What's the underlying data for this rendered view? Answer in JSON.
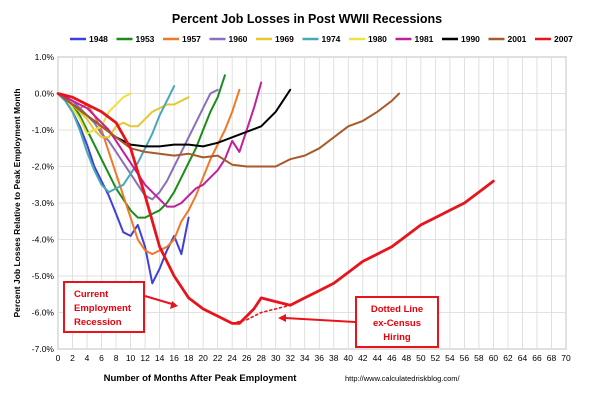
{
  "chart_data": {
    "type": "line",
    "title": "Percent Job Losses in Post WWII Recessions",
    "xlabel": "Number of Months After Peak Employment",
    "ylabel": "Percent Job Losses Relative to Peak Employment Month",
    "source": "http://www.calculatedriskblog.com/",
    "xlim": [
      0,
      70
    ],
    "ylim": [
      -7,
      1
    ],
    "x_ticks": [
      0,
      2,
      4,
      6,
      8,
      10,
      12,
      14,
      16,
      18,
      20,
      22,
      24,
      26,
      28,
      30,
      32,
      34,
      36,
      38,
      40,
      42,
      44,
      46,
      48,
      50,
      52,
      54,
      56,
      58,
      60,
      62,
      64,
      66,
      68,
      70
    ],
    "y_ticks": [
      1,
      0,
      -1,
      -2,
      -3,
      -4,
      -5,
      -6,
      -7
    ],
    "y_tick_labels": [
      "1.0%",
      "0.0%",
      "-1.0%",
      "-2.0%",
      "-3.0%",
      "-4.0%",
      "-5.0%",
      "-6.0%",
      "-7.0%"
    ],
    "grid": true,
    "legend_position": "top",
    "series": [
      {
        "name": "1948",
        "color": "#4040d8",
        "x": [
          0,
          1,
          2,
          3,
          4,
          5,
          6,
          7,
          8,
          9,
          10,
          11,
          12,
          13,
          14,
          15,
          16,
          17,
          18
        ],
        "y": [
          0,
          -0.2,
          -0.5,
          -0.9,
          -1.4,
          -2.0,
          -2.4,
          -2.8,
          -3.3,
          -3.8,
          -3.9,
          -3.6,
          -4.2,
          -5.2,
          -4.8,
          -4.3,
          -3.9,
          -4.4,
          -3.4
        ]
      },
      {
        "name": "1953",
        "color": "#1a8c1a",
        "x": [
          0,
          1,
          2,
          3,
          4,
          5,
          6,
          7,
          8,
          9,
          10,
          11,
          12,
          13,
          14,
          15,
          16,
          17,
          18,
          19,
          20,
          21,
          22,
          23
        ],
        "y": [
          0,
          -0.1,
          -0.3,
          -0.6,
          -1.0,
          -1.4,
          -1.8,
          -2.2,
          -2.6,
          -2.9,
          -3.2,
          -3.4,
          -3.4,
          -3.3,
          -3.2,
          -3.0,
          -2.7,
          -2.3,
          -1.9,
          -1.5,
          -1.0,
          -0.5,
          -0.1,
          0.5
        ]
      },
      {
        "name": "1957",
        "color": "#f07828",
        "x": [
          0,
          1,
          2,
          3,
          4,
          5,
          6,
          7,
          8,
          9,
          10,
          11,
          12,
          13,
          14,
          15,
          16,
          17,
          18,
          19,
          20,
          21,
          22,
          23,
          24,
          25
        ],
        "y": [
          0,
          -0.1,
          -0.3,
          -0.4,
          -0.3,
          -0.6,
          -1.0,
          -1.6,
          -2.2,
          -2.8,
          -3.4,
          -4.0,
          -4.3,
          -4.4,
          -4.3,
          -4.2,
          -4.0,
          -3.5,
          -3.2,
          -2.8,
          -2.3,
          -1.8,
          -1.4,
          -1.0,
          -0.5,
          0.1
        ]
      },
      {
        "name": "1960",
        "color": "#8a70b8",
        "x": [
          0,
          1,
          2,
          3,
          4,
          5,
          6,
          7,
          8,
          9,
          10,
          11,
          12,
          13,
          14,
          15,
          16,
          17,
          18,
          19,
          20,
          21,
          22
        ],
        "y": [
          0,
          -0.1,
          -0.2,
          -0.4,
          -0.6,
          -0.8,
          -1.1,
          -1.3,
          -1.6,
          -1.9,
          -2.2,
          -2.5,
          -2.8,
          -2.9,
          -2.7,
          -2.4,
          -2.0,
          -1.6,
          -1.2,
          -0.8,
          -0.4,
          0.0,
          0.1
        ]
      },
      {
        "name": "1969",
        "color": "#e6c832",
        "x": [
          0,
          1,
          2,
          3,
          4,
          5,
          6,
          7,
          8,
          9,
          10,
          11,
          12,
          13,
          14,
          15,
          16,
          17,
          18
        ],
        "y": [
          0,
          -0.1,
          -0.3,
          -0.5,
          -0.7,
          -1.0,
          -1.2,
          -1.2,
          -0.9,
          -0.8,
          -0.9,
          -0.9,
          -0.7,
          -0.5,
          -0.4,
          -0.3,
          -0.3,
          -0.2,
          -0.1
        ]
      },
      {
        "name": "1974",
        "color": "#48a8b8",
        "x": [
          0,
          1,
          2,
          3,
          4,
          5,
          6,
          7,
          8,
          9,
          10,
          11,
          12,
          13,
          14,
          15,
          16
        ],
        "y": [
          0,
          -0.2,
          -0.5,
          -1.0,
          -1.6,
          -2.1,
          -2.5,
          -2.7,
          -2.6,
          -2.5,
          -2.2,
          -1.9,
          -1.5,
          -1.1,
          -0.6,
          -0.2,
          0.2
        ]
      },
      {
        "name": "1980",
        "color": "#f0e040",
        "x": [
          0,
          1,
          2,
          3,
          4,
          5,
          6,
          7,
          8,
          9,
          10
        ],
        "y": [
          0,
          -0.1,
          -0.4,
          -0.7,
          -1.1,
          -1.0,
          -0.9,
          -0.5,
          -0.3,
          -0.1,
          0.0
        ]
      },
      {
        "name": "1981",
        "color": "#c0209c",
        "x": [
          0,
          1,
          2,
          3,
          4,
          5,
          6,
          7,
          8,
          9,
          10,
          11,
          12,
          13,
          14,
          15,
          16,
          17,
          18,
          19,
          20,
          21,
          22,
          23,
          24,
          25,
          26,
          27,
          28
        ],
        "y": [
          0,
          -0.1,
          -0.2,
          -0.3,
          -0.4,
          -0.6,
          -0.8,
          -1.0,
          -1.3,
          -1.6,
          -1.9,
          -2.2,
          -2.5,
          -2.7,
          -2.9,
          -3.1,
          -3.1,
          -3.0,
          -2.8,
          -2.6,
          -2.5,
          -2.3,
          -2.1,
          -1.8,
          -1.3,
          -1.6,
          -1.0,
          -0.4,
          0.3
        ]
      },
      {
        "name": "1990",
        "color": "#000000",
        "x": [
          0,
          2,
          4,
          6,
          8,
          10,
          12,
          14,
          16,
          18,
          20,
          22,
          24,
          26,
          28,
          30,
          32
        ],
        "y": [
          0,
          -0.3,
          -0.6,
          -0.9,
          -1.2,
          -1.4,
          -1.45,
          -1.45,
          -1.4,
          -1.4,
          -1.45,
          -1.35,
          -1.2,
          -1.05,
          -0.9,
          -0.5,
          0.1
        ]
      },
      {
        "name": "2001",
        "color": "#a85a2c",
        "x": [
          0,
          2,
          4,
          6,
          8,
          10,
          12,
          14,
          16,
          18,
          20,
          22,
          24,
          26,
          28,
          30,
          32,
          34,
          36,
          38,
          40,
          42,
          44,
          46,
          47
        ],
        "y": [
          0,
          -0.3,
          -0.6,
          -0.9,
          -1.2,
          -1.5,
          -1.6,
          -1.65,
          -1.7,
          -1.65,
          -1.75,
          -1.7,
          -1.95,
          -2.0,
          -2.0,
          -2.0,
          -1.8,
          -1.7,
          -1.5,
          -1.2,
          -0.9,
          -0.75,
          -0.5,
          -0.2,
          0.0
        ]
      },
      {
        "name": "2007",
        "color": "#e8141c",
        "x": [
          0,
          2,
          4,
          6,
          8,
          10,
          12,
          14,
          16,
          18,
          20,
          22,
          24,
          25,
          26,
          27,
          28,
          30,
          32,
          34,
          36,
          38,
          40,
          42,
          44,
          46,
          48,
          50,
          52,
          54,
          56,
          58,
          60
        ],
        "y": [
          0,
          -0.1,
          -0.3,
          -0.5,
          -0.8,
          -1.5,
          -2.8,
          -4.2,
          -5.0,
          -5.6,
          -5.9,
          -6.1,
          -6.3,
          -6.3,
          -6.1,
          -5.9,
          -5.6,
          -5.7,
          -5.8,
          -5.6,
          -5.4,
          -5.2,
          -4.9,
          -4.6,
          -4.4,
          -4.2,
          -3.9,
          -3.6,
          -3.4,
          -3.2,
          -3.0,
          -2.7,
          -2.4
        ]
      },
      {
        "name": "2007 ex-Census",
        "color": "#e8141c",
        "dotted": true,
        "legend": false,
        "x": [
          24,
          26,
          28,
          30,
          32
        ],
        "y": [
          -6.3,
          -6.2,
          -6.0,
          -5.9,
          -5.8
        ]
      }
    ],
    "annotations": [
      {
        "lines": [
          "Current",
          "Employment",
          "Recession"
        ]
      },
      {
        "lines": [
          "Dotted Line",
          "ex-Census",
          "Hiring"
        ]
      }
    ]
  }
}
